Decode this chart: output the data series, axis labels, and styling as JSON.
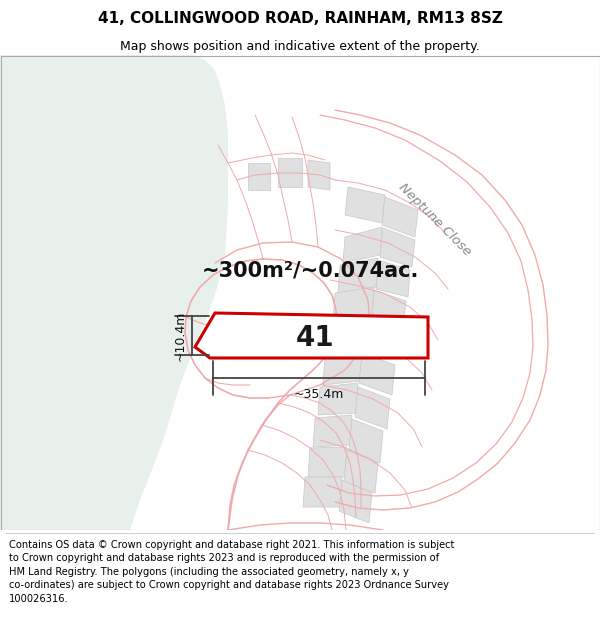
{
  "title": "41, COLLINGWOOD ROAD, RAINHAM, RM13 8SZ",
  "subtitle": "Map shows position and indicative extent of the property.",
  "footer": "Contains OS data © Crown copyright and database right 2021. This information is subject\nto Crown copyright and database rights 2023 and is reproduced with the permission of\nHM Land Registry. The polygons (including the associated geometry, namely x, y\nco-ordinates) are subject to Crown copyright and database rights 2023 Ordnance Survey\n100026316.",
  "area_label": "~300m²/~0.074ac.",
  "width_label": "~35.4m",
  "height_label": "~10.4m",
  "number_label": "41",
  "map_bg": "#f7f8f7",
  "left_bg": "#e8f0eb",
  "building_fill": "#e0e0e0",
  "building_edge": "#c8c8c8",
  "property_fill": "#ffffff",
  "property_edge": "#cc0000",
  "road_color": "#f0aaaa",
  "road_fill": "#ffffff",
  "dim_color": "#444444",
  "title_fontsize": 11,
  "subtitle_fontsize": 9,
  "footer_fontsize": 7.1,
  "number_fontsize": 20,
  "area_fontsize": 15,
  "dim_label_fontsize": 9,
  "neptune_color": "#888888",
  "neptune_label": "Neptune Close"
}
